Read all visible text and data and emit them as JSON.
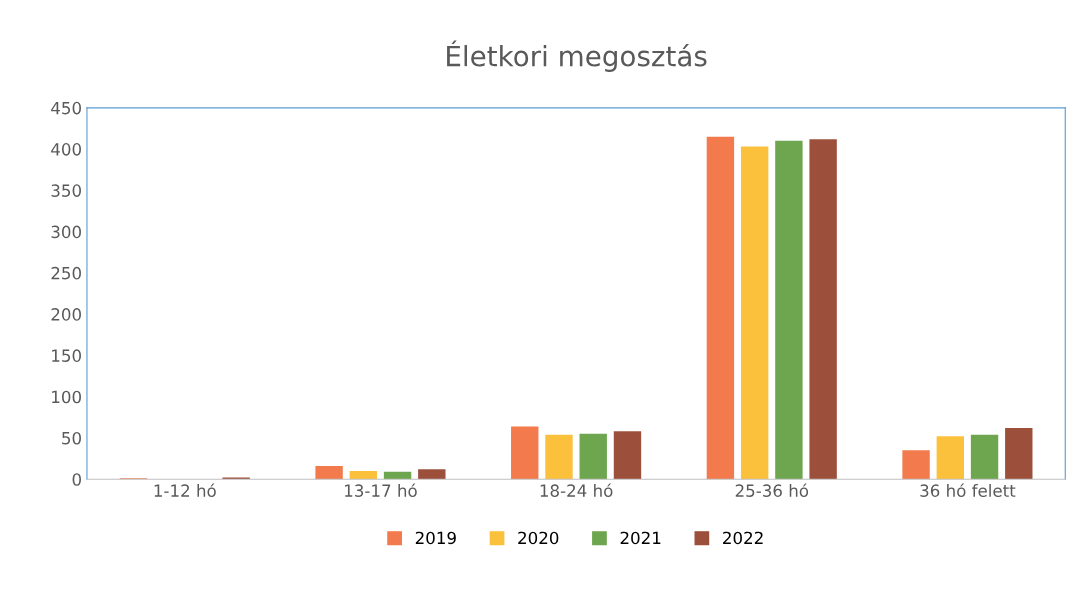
{
  "chart_data": {
    "type": "bar",
    "title": "Életkori megosztás",
    "categories": [
      "1-12 hó",
      "13-17 hó",
      "18-24 hó",
      "25-36 hó",
      "36 hó felett"
    ],
    "series": [
      {
        "name": "2019",
        "color": "#f27a4c",
        "values": [
          1,
          16,
          64,
          415,
          35
        ]
      },
      {
        "name": "2020",
        "color": "#fbc03c",
        "values": [
          0,
          10,
          54,
          403,
          52
        ]
      },
      {
        "name": "2021",
        "color": "#6ea64f",
        "values": [
          0,
          9,
          55,
          410,
          54
        ]
      },
      {
        "name": "2022",
        "color": "#9c4f3a",
        "values": [
          2,
          12,
          58,
          412,
          62
        ]
      }
    ],
    "ylim": [
      0,
      450
    ],
    "yticks": [
      0,
      50,
      100,
      150,
      200,
      250,
      300,
      350,
      400,
      450
    ],
    "grid": false,
    "legend": "bottom"
  }
}
